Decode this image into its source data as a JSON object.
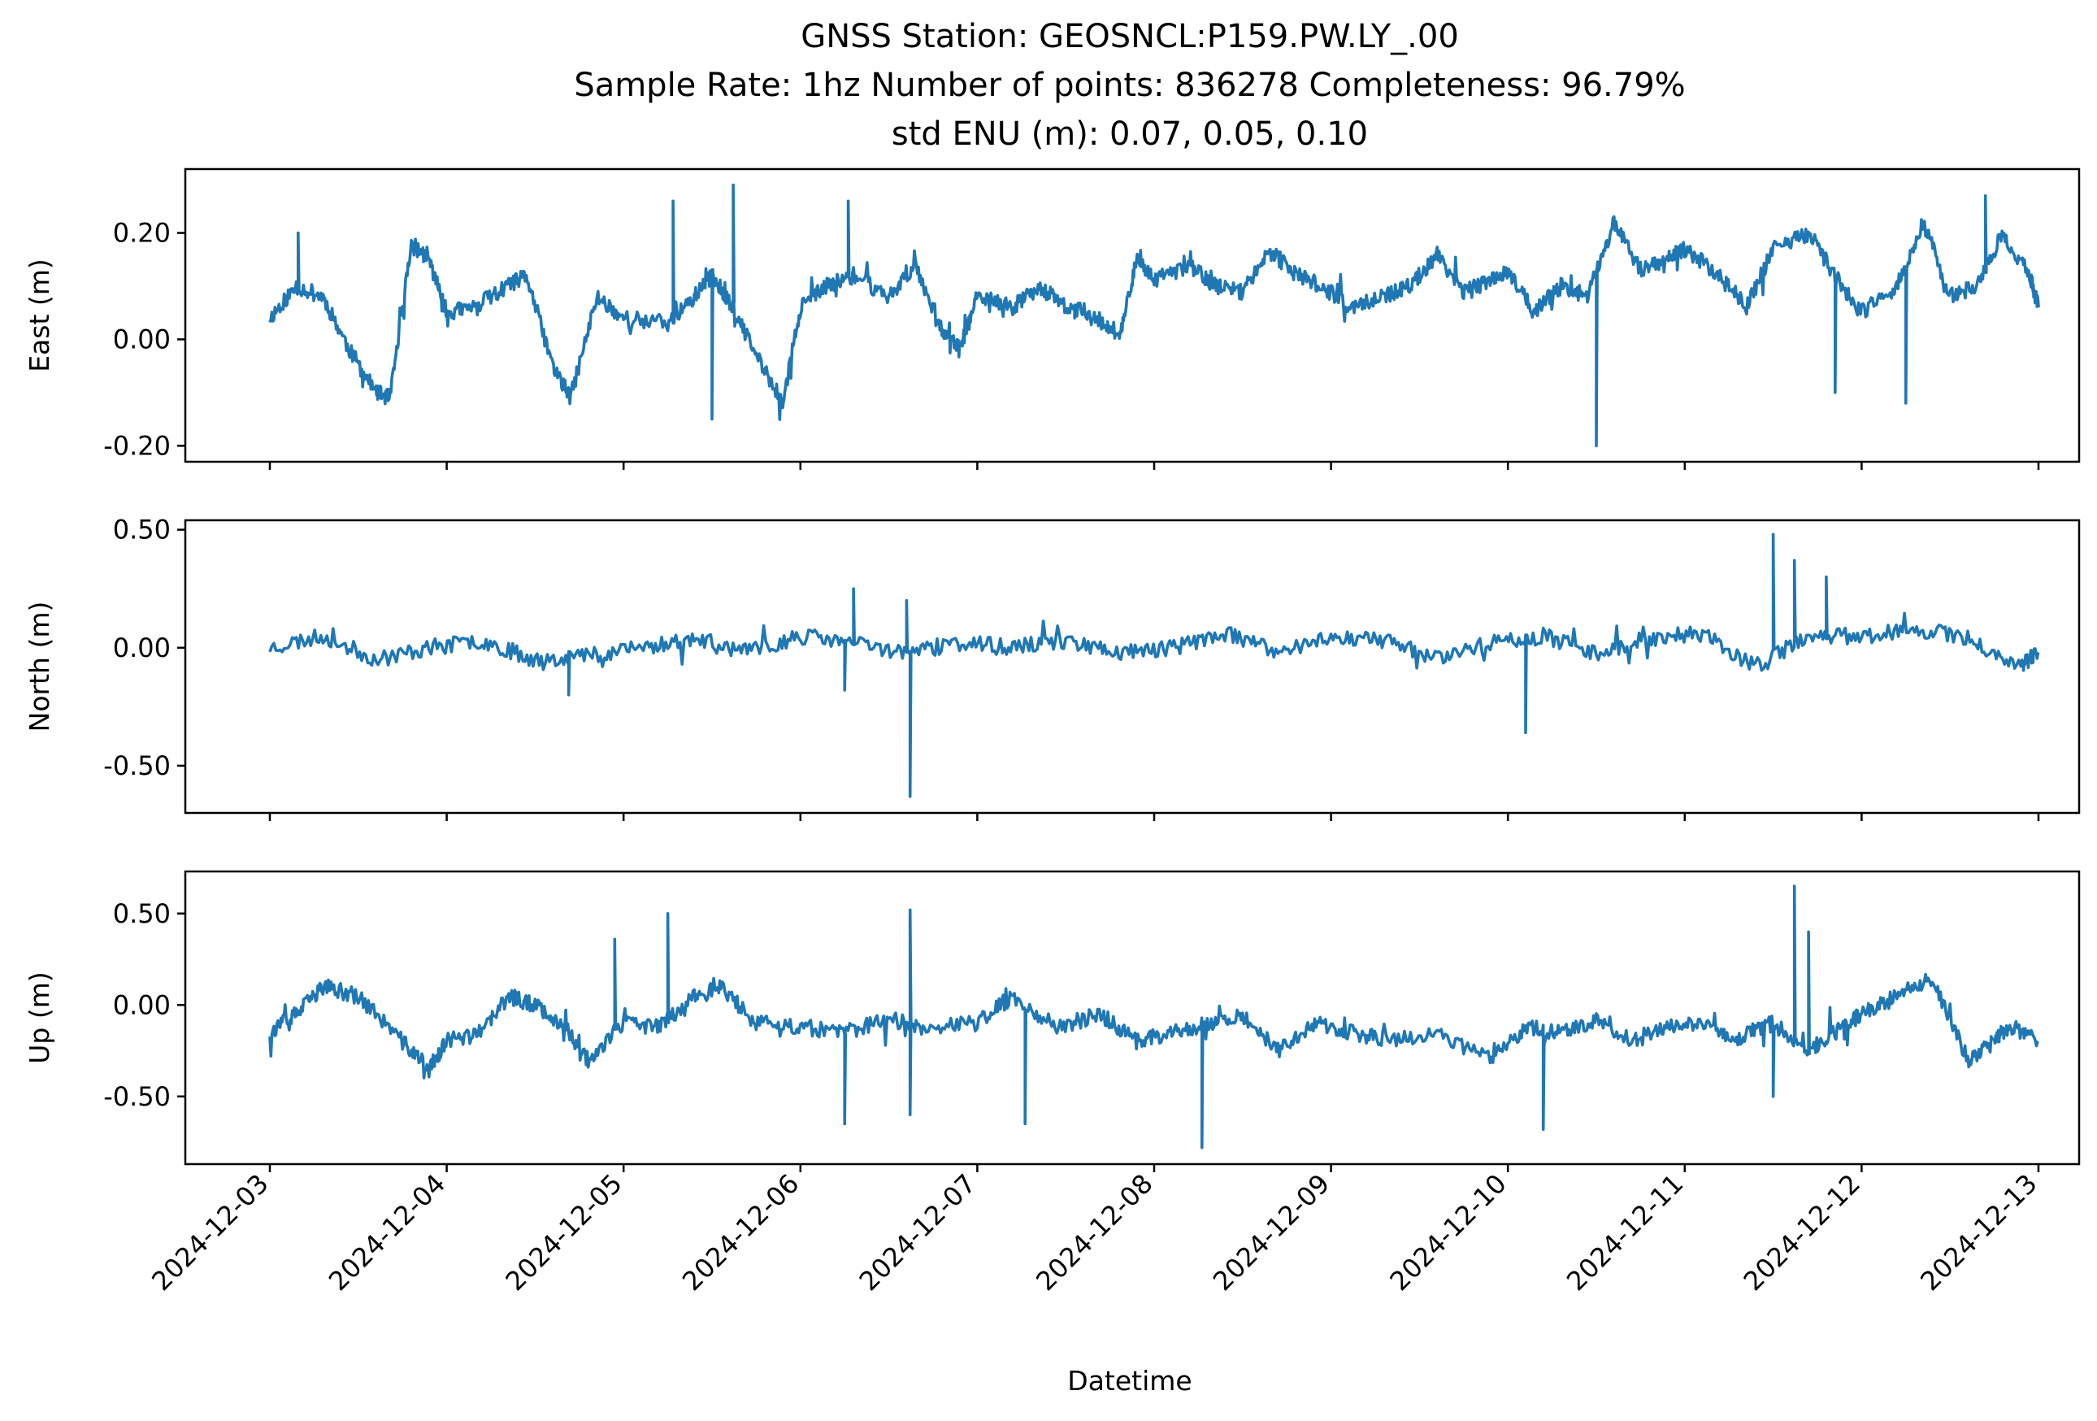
{
  "title_lines": [
    "GNSS Station: GEOSNCL:P159.PW.LY_.00",
    "Sample Rate: 1hz   Number of points: 836278    Completeness:  96.79%",
    "std ENU (m):  0.07, 0.05, 0.10"
  ],
  "chart_data": [
    {
      "type": "line",
      "ylabel": "East (m)",
      "xlabel": "",
      "x_range": [
        0,
        10
      ],
      "ylim": [
        -0.23,
        0.32
      ],
      "yticks": [
        0.2,
        0.0,
        -0.2
      ],
      "ytick_labels": [
        "0.20",
        "0.00",
        "-0.20"
      ],
      "show_x_tick_labels": false,
      "grid": false,
      "color": "#1f77b4",
      "series": [
        {
          "seed": 11,
          "x": [
            0.0,
            0.15,
            0.3,
            0.45,
            0.6,
            0.68,
            0.8,
            0.9,
            1.0,
            1.15,
            1.35,
            1.45,
            1.6,
            1.7,
            1.85,
            2.0,
            2.25,
            2.4,
            2.5,
            2.6,
            2.75,
            2.9,
            3.0,
            3.15,
            3.3,
            3.5,
            3.65,
            3.8,
            3.9,
            4.0,
            4.2,
            4.35,
            4.5,
            4.65,
            4.8,
            4.9,
            5.0,
            5.2,
            5.35,
            5.5,
            5.65,
            5.8,
            5.95,
            6.1,
            6.3,
            6.45,
            6.6,
            6.75,
            6.9,
            7.0,
            7.15,
            7.3,
            7.45,
            7.6,
            7.75,
            7.9,
            8.0,
            8.2,
            8.35,
            8.5,
            8.7,
            8.85,
            9.0,
            9.2,
            9.35,
            9.5,
            9.65,
            9.8,
            9.95,
            10.0
          ],
          "y": [
            0.04,
            0.1,
            0.08,
            -0.02,
            -0.1,
            -0.11,
            0.18,
            0.15,
            0.05,
            0.06,
            0.1,
            0.12,
            -0.05,
            -0.11,
            0.08,
            0.04,
            0.03,
            0.08,
            0.12,
            0.07,
            -0.03,
            -0.12,
            0.06,
            0.1,
            0.12,
            0.08,
            0.14,
            0.02,
            -0.02,
            0.08,
            0.06,
            0.1,
            0.06,
            0.05,
            0.0,
            0.15,
            0.11,
            0.14,
            0.1,
            0.09,
            0.17,
            0.12,
            0.1,
            0.06,
            0.08,
            0.1,
            0.16,
            0.09,
            0.11,
            0.13,
            0.05,
            0.1,
            0.08,
            0.22,
            0.13,
            0.15,
            0.17,
            0.12,
            0.06,
            0.17,
            0.2,
            0.12,
            0.05,
            0.1,
            0.22,
            0.08,
            0.1,
            0.2,
            0.12,
            0.06
          ],
          "spikes": [
            [
              0.16,
              0.2
            ],
            [
              2.28,
              0.26
            ],
            [
              2.5,
              -0.15
            ],
            [
              2.62,
              0.29
            ],
            [
              3.27,
              0.26
            ],
            [
              4.55,
              0.04
            ],
            [
              7.5,
              -0.2
            ],
            [
              8.85,
              -0.1
            ],
            [
              9.25,
              -0.12
            ],
            [
              9.7,
              0.27
            ]
          ]
        }
      ]
    },
    {
      "type": "line",
      "ylabel": "North (m)",
      "xlabel": "",
      "x_range": [
        0,
        10
      ],
      "ylim": [
        -0.7,
        0.54
      ],
      "yticks": [
        0.5,
        0.0,
        -0.5
      ],
      "ytick_labels": [
        "0.50",
        "0.00",
        "-0.50"
      ],
      "show_x_tick_labels": false,
      "grid": false,
      "color": "#1f77b4",
      "series": [
        {
          "seed": 23,
          "x": [
            0.0,
            0.3,
            0.6,
            0.9,
            1.2,
            1.5,
            1.8,
            2.1,
            2.4,
            2.7,
            3.0,
            3.3,
            3.6,
            3.9,
            4.2,
            4.5,
            4.8,
            5.1,
            5.4,
            5.7,
            6.0,
            6.3,
            6.6,
            6.9,
            7.2,
            7.5,
            7.8,
            8.1,
            8.4,
            8.7,
            9.0,
            9.3,
            9.6,
            9.9,
            10.0
          ],
          "y": [
            0.0,
            0.05,
            -0.05,
            0.0,
            0.03,
            -0.05,
            -0.03,
            0.0,
            0.04,
            -0.02,
            0.05,
            0.02,
            -0.02,
            0.02,
            0.0,
            0.03,
            -0.02,
            0.0,
            0.06,
            -0.02,
            0.05,
            0.03,
            -0.04,
            0.02,
            0.05,
            -0.02,
            0.04,
            0.06,
            -0.08,
            0.05,
            0.05,
            0.08,
            0.04,
            -0.08,
            -0.02
          ],
          "spikes": [
            [
              1.69,
              -0.2
            ],
            [
              3.3,
              0.25
            ],
            [
              3.6,
              0.2
            ],
            [
              3.25,
              -0.18
            ],
            [
              3.62,
              -0.63
            ],
            [
              7.1,
              -0.36
            ],
            [
              8.5,
              0.48
            ],
            [
              8.62,
              0.37
            ],
            [
              8.8,
              0.3
            ]
          ]
        }
      ]
    },
    {
      "type": "line",
      "ylabel": "Up (m)",
      "xlabel": "Datetime",
      "x_range": [
        0,
        10
      ],
      "ylim": [
        -0.87,
        0.73
      ],
      "yticks": [
        0.5,
        0.0,
        -0.5
      ],
      "ytick_labels": [
        "0.50",
        "0.00",
        "-0.50"
      ],
      "show_x_tick_labels": true,
      "x_ticks": [
        "2024-12-03",
        "2024-12-04",
        "2024-12-05",
        "2024-12-06",
        "2024-12-07",
        "2024-12-08",
        "2024-12-09",
        "2024-12-10",
        "2024-12-11",
        "2024-12-12",
        "2024-12-13"
      ],
      "grid": false,
      "color": "#1f77b4",
      "series": [
        {
          "seed": 37,
          "x": [
            0.0,
            0.15,
            0.3,
            0.5,
            0.75,
            0.9,
            1.0,
            1.2,
            1.35,
            1.5,
            1.65,
            1.8,
            2.0,
            2.2,
            2.4,
            2.55,
            2.75,
            3.0,
            3.25,
            3.5,
            3.7,
            4.0,
            4.2,
            4.45,
            4.7,
            4.9,
            5.1,
            5.3,
            5.5,
            5.7,
            5.9,
            6.1,
            6.3,
            6.6,
            6.9,
            7.1,
            7.3,
            7.5,
            7.7,
            7.9,
            8.1,
            8.3,
            8.5,
            8.7,
            8.85,
            9.0,
            9.2,
            9.4,
            9.6,
            9.75,
            9.85,
            10.0
          ],
          "y": [
            -0.15,
            -0.05,
            0.1,
            0.05,
            -0.2,
            -0.35,
            -0.2,
            -0.15,
            0.05,
            0.0,
            -0.1,
            -0.3,
            -0.1,
            -0.12,
            0.05,
            0.1,
            -0.1,
            -0.12,
            -0.15,
            -0.08,
            -0.12,
            -0.1,
            0.05,
            -0.12,
            -0.05,
            -0.2,
            -0.15,
            -0.1,
            -0.05,
            -0.25,
            -0.1,
            -0.15,
            -0.2,
            -0.15,
            -0.3,
            -0.12,
            -0.15,
            -0.08,
            -0.2,
            -0.12,
            -0.1,
            -0.18,
            -0.1,
            -0.25,
            -0.15,
            -0.05,
            0.05,
            0.15,
            -0.3,
            -0.2,
            -0.12,
            -0.2
          ],
          "spikes": [
            [
              1.95,
              0.36
            ],
            [
              2.25,
              0.5
            ],
            [
              3.25,
              -0.65
            ],
            [
              3.62,
              0.52
            ],
            [
              3.62,
              -0.6
            ],
            [
              4.27,
              -0.65
            ],
            [
              5.27,
              -0.78
            ],
            [
              7.2,
              -0.68
            ],
            [
              8.62,
              0.65
            ],
            [
              8.7,
              0.4
            ],
            [
              8.5,
              -0.5
            ]
          ]
        }
      ]
    }
  ]
}
